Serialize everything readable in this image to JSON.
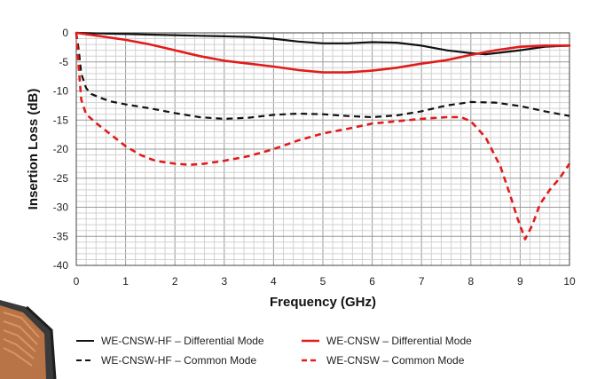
{
  "chart_data": {
    "type": "line",
    "title": "",
    "xlabel": "Frequency (GHz)",
    "ylabel": "Insertion Loss (dB)",
    "xlim": [
      0,
      10
    ],
    "ylim": [
      -40,
      0
    ],
    "x_ticks": [
      "0",
      "1",
      "2",
      "3",
      "4",
      "5",
      "6",
      "7",
      "8",
      "9",
      "10"
    ],
    "y_ticks": [
      "0",
      "-5",
      "-10",
      "-15",
      "-20",
      "-25",
      "-30",
      "-35",
      "-40"
    ],
    "grid": true,
    "legend_position": "bottom",
    "series": [
      {
        "name": "WE-CNSW-HF – Differential Mode",
        "color": "#111111",
        "dash": "solid",
        "x": [
          0,
          0.5,
          1,
          1.5,
          2,
          2.5,
          3,
          3.5,
          4,
          4.5,
          5,
          5.5,
          6,
          6.5,
          7,
          7.5,
          8,
          8.3,
          8.5,
          9,
          9.5,
          10
        ],
        "y": [
          0,
          -0.1,
          -0.2,
          -0.3,
          -0.4,
          -0.5,
          -0.6,
          -0.7,
          -1.0,
          -1.5,
          -1.8,
          -1.8,
          -1.6,
          -1.7,
          -2.2,
          -3.0,
          -3.5,
          -3.7,
          -3.5,
          -3.0,
          -2.4,
          -2.2
        ]
      },
      {
        "name": "WE-CNSW – Differential Mode",
        "color": "#e21b1b",
        "dash": "solid",
        "x": [
          0,
          0.5,
          1,
          1.5,
          2,
          2.5,
          3,
          3.5,
          4,
          4.5,
          5,
          5.5,
          6,
          6.5,
          7,
          7.5,
          8,
          8.5,
          9,
          9.5,
          10
        ],
        "y": [
          0,
          -0.6,
          -1.2,
          -2.0,
          -3.0,
          -4.0,
          -4.8,
          -5.3,
          -5.8,
          -6.4,
          -6.8,
          -6.8,
          -6.5,
          -6.0,
          -5.3,
          -4.7,
          -3.8,
          -3.0,
          -2.4,
          -2.2,
          -2.2
        ]
      },
      {
        "name": "WE-CNSW-HF – Common Mode",
        "color": "#111111",
        "dash": "dashed",
        "x": [
          0,
          0.05,
          0.1,
          0.2,
          0.3,
          0.5,
          0.7,
          1,
          1.5,
          2,
          2.5,
          3,
          3.5,
          4,
          4.5,
          5,
          5.5,
          6,
          6.5,
          7,
          7.5,
          8,
          8.5,
          9,
          9.5,
          10
        ],
        "y": [
          0,
          -3,
          -7,
          -9.5,
          -10.5,
          -11.2,
          -11.8,
          -12.3,
          -13.0,
          -13.8,
          -14.5,
          -14.8,
          -14.6,
          -14.1,
          -13.9,
          -14.0,
          -14.3,
          -14.5,
          -14.2,
          -13.5,
          -12.5,
          -11.9,
          -12.0,
          -12.6,
          -13.5,
          -14.3
        ]
      },
      {
        "name": "WE-CNSW – Common Mode",
        "color": "#e21b1b",
        "dash": "dashed",
        "x": [
          0,
          0.05,
          0.1,
          0.2,
          0.4,
          0.7,
          1,
          1.3,
          1.6,
          2,
          2.3,
          2.6,
          3,
          3.5,
          4,
          4.5,
          5,
          5.5,
          6,
          6.5,
          7,
          7.5,
          7.8,
          8,
          8.3,
          8.6,
          8.8,
          8.95,
          9.1,
          9.25,
          9.4,
          9.6,
          9.8,
          10
        ],
        "y": [
          0,
          -6,
          -11.5,
          -14,
          -15.5,
          -17.5,
          -19.5,
          -21,
          -22,
          -22.5,
          -22.7,
          -22.5,
          -22.0,
          -21.2,
          -20.0,
          -18.5,
          -17.3,
          -16.5,
          -15.6,
          -15.2,
          -14.8,
          -14.5,
          -14.5,
          -15.2,
          -18,
          -23,
          -28,
          -32,
          -35.5,
          -33,
          -29.5,
          -27,
          -25,
          -22.5
        ]
      }
    ]
  },
  "legend": {
    "items": [
      {
        "label": "WE-CNSW-HF – Differential Mode"
      },
      {
        "label": "WE-CNSW – Differential Mode"
      },
      {
        "label": "WE-CNSW-HF – Common Mode"
      },
      {
        "label": "WE-CNSW – Common Mode"
      }
    ]
  }
}
